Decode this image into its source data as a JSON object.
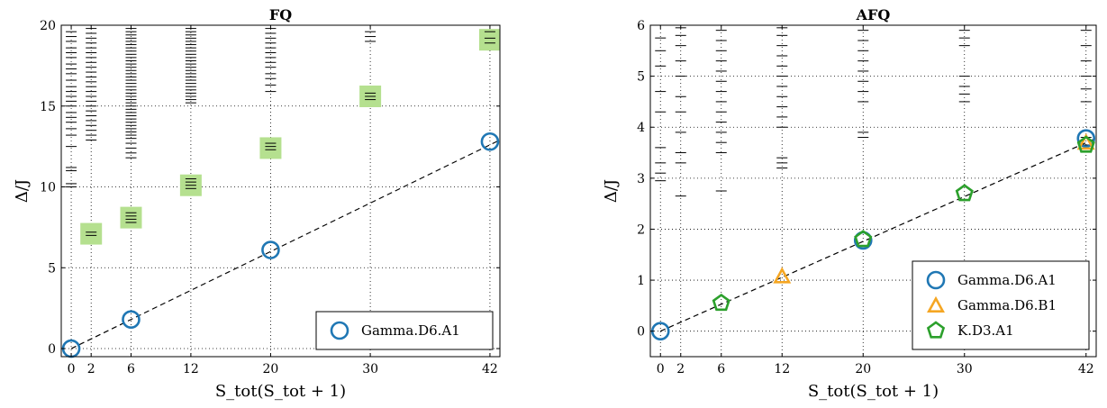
{
  "chart_data": [
    {
      "type": "scatter",
      "title": "FQ",
      "xlabel": "S_tot(S_tot + 1)",
      "ylabel": "Δ/J",
      "xlim": [
        -1,
        43
      ],
      "ylim": [
        -0.5,
        20
      ],
      "xticks": [
        0,
        2,
        6,
        12,
        20,
        30,
        42
      ],
      "yticks": [
        0,
        5,
        10,
        15,
        20
      ],
      "grid": "dotted",
      "legend_position": "bottom-right",
      "colors": {
        "circle": "#1f77b4",
        "square": "#b5e08f"
      },
      "fit_line": {
        "style": "dashed",
        "slope": 0.3,
        "intercept": 0
      },
      "series": [
        {
          "name": "Gamma.D6.A1",
          "marker": "circle",
          "x": [
            0,
            6,
            20,
            42
          ],
          "y": [
            0.0,
            1.8,
            6.1,
            12.8
          ]
        }
      ],
      "highlight_squares": {
        "x": [
          2,
          6,
          12,
          20,
          30,
          42
        ],
        "y": [
          7.1,
          8.1,
          10.1,
          12.4,
          15.6,
          19.1
        ]
      },
      "levels": [
        {
          "x": 0,
          "y": [
            10.0,
            10.2,
            11.0,
            11.2,
            12.5,
            13.2,
            13.6,
            14.0,
            14.3,
            14.6,
            15.0,
            15.3,
            15.6,
            15.9,
            16.2,
            16.6,
            17.0,
            17.3,
            17.6,
            18.0,
            18.3,
            18.6,
            19.0,
            19.3,
            19.6
          ]
        },
        {
          "x": 2,
          "y": [
            7.0,
            7.2,
            12.9,
            13.2,
            13.5,
            13.8,
            14.1,
            14.4,
            14.7,
            15.0,
            15.3,
            15.6,
            15.9,
            16.2,
            16.5,
            16.8,
            17.1,
            17.4,
            17.7,
            18.0,
            18.3,
            18.6,
            18.9,
            19.2,
            19.5,
            19.8
          ]
        },
        {
          "x": 6,
          "y": [
            7.8,
            8.0,
            8.2,
            8.4,
            11.8,
            12.1,
            12.4,
            12.7,
            13.0,
            13.2,
            13.4,
            13.6,
            13.8,
            14.0,
            14.2,
            14.4,
            14.6,
            14.8,
            15.0,
            15.2,
            15.4,
            15.6,
            15.8,
            16.0,
            16.2,
            16.4,
            16.6,
            16.8,
            17.0,
            17.2,
            17.4,
            17.6,
            17.8,
            18.0,
            18.2,
            18.4,
            18.6,
            18.8,
            19.0,
            19.2,
            19.4,
            19.6,
            19.8
          ]
        },
        {
          "x": 12,
          "y": [
            9.9,
            10.1,
            10.3,
            10.5,
            15.2,
            15.4,
            15.6,
            15.8,
            16.0,
            16.2,
            16.4,
            16.6,
            16.8,
            17.0,
            17.2,
            17.4,
            17.6,
            17.8,
            18.0,
            18.2,
            18.4,
            18.6,
            18.8,
            19.0,
            19.2,
            19.4,
            19.6,
            19.8
          ]
        },
        {
          "x": 20,
          "y": [
            12.3,
            12.5,
            12.7,
            15.9,
            16.3,
            16.7,
            17.0,
            17.4,
            17.7,
            18.0,
            18.3,
            18.6,
            18.9,
            19.2,
            19.5,
            19.8
          ]
        },
        {
          "x": 30,
          "y": [
            15.4,
            15.6,
            15.8,
            19.0,
            19.3,
            19.6
          ]
        },
        {
          "x": 42,
          "y": [
            18.9,
            19.2,
            19.6
          ]
        }
      ]
    },
    {
      "type": "scatter",
      "title": "AFQ",
      "xlabel": "S_tot(S_tot + 1)",
      "ylabel": "Δ/J",
      "xlim": [
        -1,
        43
      ],
      "ylim": [
        -0.5,
        6
      ],
      "xticks": [
        0,
        2,
        6,
        12,
        20,
        30,
        42
      ],
      "yticks": [
        0,
        1,
        2,
        3,
        4,
        5,
        6
      ],
      "grid": "dotted",
      "legend_position": "bottom-right",
      "colors": {
        "circle": "#1f77b4",
        "triangle": "#f5a623",
        "pentagon": "#2ca02c"
      },
      "fit_line": {
        "style": "dashed",
        "slope": 0.088,
        "intercept": 0
      },
      "series": [
        {
          "name": "Gamma.D6.A1",
          "marker": "circle",
          "x": [
            0,
            20,
            42
          ],
          "y": [
            0.0,
            1.78,
            3.78
          ]
        },
        {
          "name": "Gamma.D6.B1",
          "marker": "triangle",
          "x": [
            12,
            42
          ],
          "y": [
            1.08,
            3.7
          ]
        },
        {
          "name": "K.D3.A1",
          "marker": "pentagon",
          "x": [
            6,
            20,
            30,
            42
          ],
          "y": [
            0.55,
            1.8,
            2.7,
            3.65
          ]
        }
      ],
      "levels": [
        {
          "x": 0,
          "y": [
            2.95,
            3.1,
            3.3,
            3.6,
            4.3,
            4.7,
            5.2,
            5.5,
            5.75
          ]
        },
        {
          "x": 2,
          "y": [
            2.65,
            3.3,
            3.5,
            3.9,
            4.3,
            4.6,
            5.0,
            5.3,
            5.6,
            5.8,
            5.95
          ]
        },
        {
          "x": 6,
          "y": [
            2.75,
            3.5,
            3.7,
            3.9,
            4.1,
            4.3,
            4.5,
            4.7,
            4.9,
            5.1,
            5.3,
            5.5,
            5.7,
            5.9
          ]
        },
        {
          "x": 12,
          "y": [
            3.2,
            3.3,
            3.4,
            4.0,
            4.2,
            4.4,
            4.6,
            4.8,
            5.0,
            5.2,
            5.4,
            5.6,
            5.8,
            5.95
          ]
        },
        {
          "x": 20,
          "y": [
            3.8,
            3.9,
            4.5,
            4.7,
            4.9,
            5.1,
            5.3,
            5.5,
            5.7,
            5.9
          ]
        },
        {
          "x": 30,
          "y": [
            4.5,
            4.65,
            4.8,
            5.0,
            5.6,
            5.75,
            5.9,
            6.0
          ]
        },
        {
          "x": 42,
          "y": [
            3.65,
            3.8,
            4.5,
            4.75,
            5.0,
            5.3,
            5.6,
            5.9
          ]
        }
      ]
    }
  ]
}
